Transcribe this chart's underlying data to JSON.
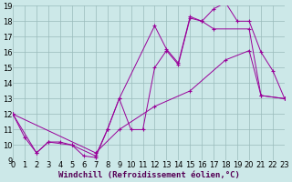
{
  "bg_color": "#cce8e8",
  "line_color": "#990099",
  "grid_color": "#99bbbb",
  "xlabel": "Windchill (Refroidissement éolien,°C)",
  "xlabel_fontsize": 6.5,
  "tick_fontsize": 6.0,
  "ylim": [
    9,
    19
  ],
  "xlim": [
    0,
    23
  ],
  "yticks": [
    9,
    10,
    11,
    12,
    13,
    14,
    15,
    16,
    17,
    18,
    19
  ],
  "xticks": [
    0,
    1,
    2,
    3,
    4,
    5,
    6,
    7,
    8,
    9,
    10,
    11,
    12,
    13,
    14,
    15,
    16,
    17,
    18,
    19,
    20,
    21,
    22,
    23
  ],
  "series1": [
    [
      0,
      12.0
    ],
    [
      1,
      10.5
    ],
    [
      2,
      9.5
    ],
    [
      3,
      10.2
    ],
    [
      4,
      10.2
    ],
    [
      5,
      10.0
    ],
    [
      6,
      9.3
    ],
    [
      7,
      9.2
    ],
    [
      8,
      11.0
    ],
    [
      9,
      13.0
    ],
    [
      10,
      11.0
    ],
    [
      11,
      11.0
    ],
    [
      12,
      15.0
    ],
    [
      13,
      16.1
    ],
    [
      14,
      15.2
    ],
    [
      15,
      18.2
    ],
    [
      16,
      18.0
    ],
    [
      17,
      18.8
    ],
    [
      18,
      19.2
    ],
    [
      19,
      18.0
    ],
    [
      20,
      18.0
    ],
    [
      21,
      16.0
    ],
    [
      22,
      14.8
    ],
    [
      23,
      13.0
    ]
  ],
  "series2": [
    [
      0,
      12.0
    ],
    [
      2,
      9.5
    ],
    [
      3,
      10.2
    ],
    [
      5,
      10.0
    ],
    [
      7,
      9.3
    ],
    [
      8,
      11.0
    ],
    [
      9,
      13.0
    ],
    [
      12,
      17.7
    ],
    [
      13,
      16.2
    ],
    [
      14,
      15.3
    ],
    [
      15,
      18.3
    ],
    [
      16,
      18.0
    ],
    [
      17,
      17.5
    ],
    [
      20,
      17.5
    ],
    [
      21,
      13.2
    ],
    [
      23,
      13.0
    ]
  ],
  "series3": [
    [
      0,
      12.0
    ],
    [
      7,
      9.5
    ],
    [
      9,
      11.0
    ],
    [
      12,
      12.5
    ],
    [
      15,
      13.5
    ],
    [
      18,
      15.5
    ],
    [
      20,
      16.1
    ],
    [
      21,
      13.2
    ],
    [
      23,
      13.0
    ]
  ]
}
